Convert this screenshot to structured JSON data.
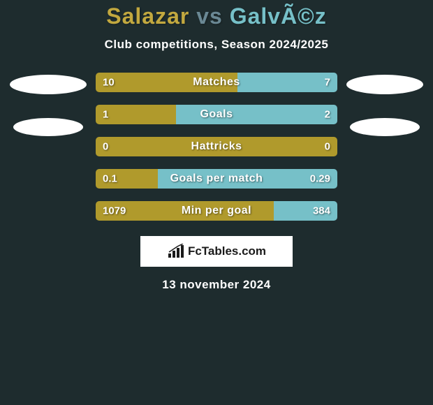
{
  "background_color": "#1e2c2e",
  "title": {
    "player1": "Salazar",
    "vs": "vs",
    "player2": "GalvÃ©z",
    "player1_color": "#c2a83f",
    "vs_color": "#6a8894",
    "player2_color": "#76c0c8"
  },
  "subtitle": "Club competitions, Season 2024/2025",
  "left_color": "#b09a2c",
  "right_color": "#76c0c8",
  "stats": [
    {
      "label": "Matches",
      "left_val": "10",
      "right_val": "7",
      "left_pct": 58.8
    },
    {
      "label": "Goals",
      "left_val": "1",
      "right_val": "2",
      "left_pct": 33.3
    },
    {
      "label": "Hattricks",
      "left_val": "0",
      "right_val": "0",
      "left_pct": 100
    },
    {
      "label": "Goals per match",
      "left_val": "0.1",
      "right_val": "0.29",
      "left_pct": 25.6
    },
    {
      "label": "Min per goal",
      "left_val": "1079",
      "right_val": "384",
      "left_pct": 73.7
    }
  ],
  "logo_text": "FcTables.com",
  "date": "13 november 2024",
  "ellipse_color": "#ffffff"
}
